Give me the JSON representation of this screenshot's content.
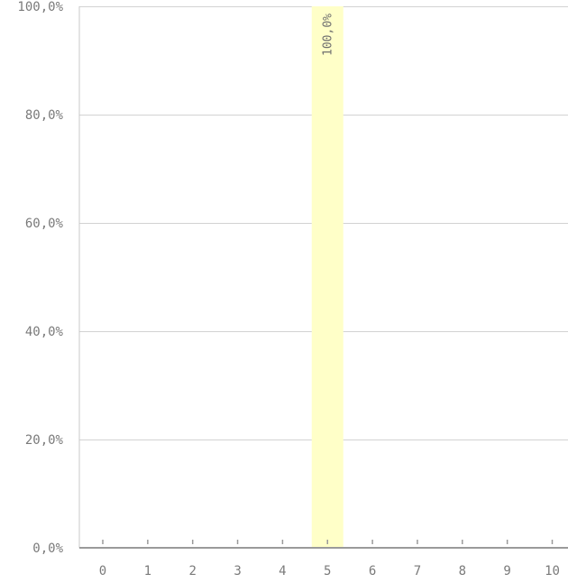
{
  "chart_data": {
    "type": "bar",
    "categories": [
      "0",
      "1",
      "2",
      "3",
      "4",
      "5",
      "6",
      "7",
      "8",
      "9",
      "10"
    ],
    "values": [
      0,
      0,
      0,
      0,
      0,
      100,
      0,
      0,
      0,
      0,
      0
    ],
    "data_labels": [
      "",
      "",
      "",
      "",
      "",
      "100,0%",
      "",
      "",
      "",
      "",
      ""
    ],
    "ylim": [
      0,
      100
    ],
    "yticks": [
      0,
      20,
      40,
      60,
      80,
      100
    ],
    "ytick_labels": [
      "0,0%",
      "20,0%",
      "40,0%",
      "60,0%",
      "80,0%",
      "100,0%"
    ],
    "grid": true,
    "bar_color": "#ffffc8",
    "title": "",
    "xlabel": "",
    "ylabel": ""
  }
}
